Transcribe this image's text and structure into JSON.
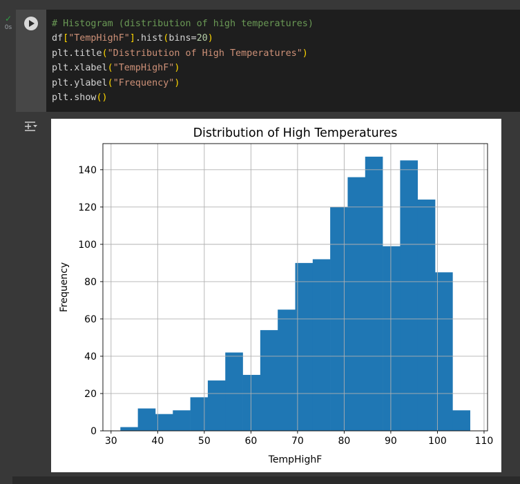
{
  "cell": {
    "exec_time": "0s",
    "code_lines": [
      [
        {
          "t": "# Histogram (distribution of high temperatures)",
          "c": "comment"
        }
      ],
      [
        {
          "t": "df",
          "c": "plain"
        },
        {
          "t": "[",
          "c": "br"
        },
        {
          "t": "\"TempHighF\"",
          "c": "str"
        },
        {
          "t": "]",
          "c": "br"
        },
        {
          "t": ".hist",
          "c": "plain"
        },
        {
          "t": "(",
          "c": "br"
        },
        {
          "t": "bins=",
          "c": "plain"
        },
        {
          "t": "20",
          "c": "num"
        },
        {
          "t": ")",
          "c": "br"
        }
      ],
      [
        {
          "t": "plt.title",
          "c": "plain"
        },
        {
          "t": "(",
          "c": "br"
        },
        {
          "t": "\"Distribution of High Temperatures\"",
          "c": "str"
        },
        {
          "t": ")",
          "c": "br"
        }
      ],
      [
        {
          "t": "plt.xlabel",
          "c": "plain"
        },
        {
          "t": "(",
          "c": "br"
        },
        {
          "t": "\"TempHighF\"",
          "c": "str"
        },
        {
          "t": ")",
          "c": "br"
        }
      ],
      [
        {
          "t": "plt.ylabel",
          "c": "plain"
        },
        {
          "t": "(",
          "c": "br"
        },
        {
          "t": "\"Frequency\"",
          "c": "str"
        },
        {
          "t": ")",
          "c": "br"
        }
      ],
      [
        {
          "t": "plt.show",
          "c": "plain"
        },
        {
          "t": "()",
          "c": "br"
        }
      ]
    ]
  },
  "icons": {
    "status": "check-icon",
    "run": "play-icon",
    "output_menu": "output-actions-icon"
  },
  "colors": {
    "bar": "#1f77b4",
    "grid": "#b0b0b0",
    "comment": "#6a9955",
    "string": "#ce9178",
    "number": "#b5cea8",
    "bracket": "#ffd700"
  },
  "chart_data": {
    "type": "bar",
    "title": "Distribution of High Temperatures",
    "xlabel": "TempHighF",
    "ylabel": "Frequency",
    "bins": 20,
    "bin_start": 32,
    "bin_width": 3.75,
    "values": [
      2,
      12,
      9,
      11,
      18,
      27,
      42,
      30,
      54,
      65,
      90,
      92,
      120,
      136,
      147,
      99,
      145,
      124,
      85,
      11
    ],
    "xlim": [
      28.25,
      110.75
    ],
    "ylim": [
      0,
      154
    ],
    "xticks": [
      30,
      40,
      50,
      60,
      70,
      80,
      90,
      100,
      110
    ],
    "yticks": [
      0,
      20,
      40,
      60,
      80,
      100,
      120,
      140
    ],
    "grid": true
  }
}
